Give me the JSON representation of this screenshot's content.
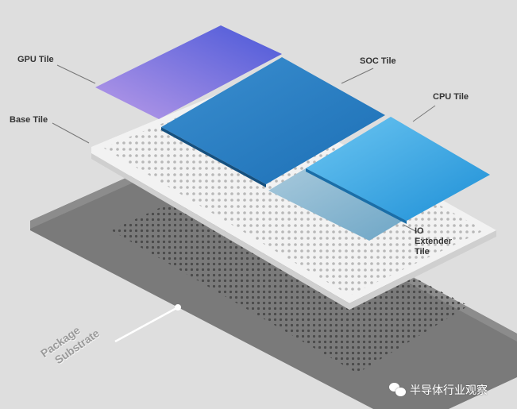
{
  "labels": {
    "gpu": "GPU Tile",
    "soc": "SOC Tile",
    "cpu": "CPU Tile",
    "base": "Base Tile",
    "io": [
      "IO",
      "Extender",
      "Tile"
    ],
    "package": [
      "Package",
      "Substrate"
    ]
  },
  "watermark": "半导体行业观察",
  "colors": {
    "background": "#dedede",
    "substrate": "#7a7a7a",
    "base_tile": "#f2f2f2",
    "gpu_tile": "#8a6fe0",
    "soc_tile": "#2f86c8",
    "cpu_tile": "#3fa9e6",
    "io_tile": "#8fb8d0"
  }
}
